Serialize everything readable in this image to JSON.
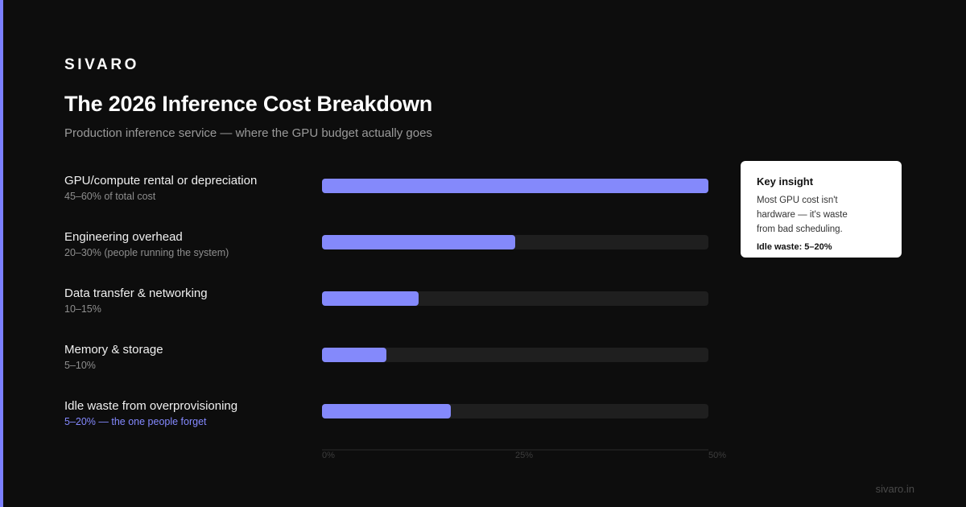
{
  "brand": "SIVARO",
  "title": "The 2026 Inference Cost Breakdown",
  "subtitle": "Production inference service — where the GPU budget actually goes",
  "colors": {
    "accent": "#7b7fff",
    "bar": "#8489fb",
    "track": "#1f1f1f",
    "background": "#0d0d0d",
    "highlight_note": "#8489ff"
  },
  "chart_data": {
    "type": "bar",
    "orientation": "horizontal",
    "xlim": [
      0,
      50
    ],
    "x_ticks": [
      "0%",
      "25%",
      "50%"
    ],
    "grid": false,
    "categories": [
      "GPU/compute rental or depreciation",
      "Engineering overhead",
      "Data transfer & networking",
      "Memory & storage",
      "Idle waste from overprovisioning"
    ],
    "notes": [
      "45–60% of total cost",
      "20–30% (people running the system)",
      "10–15%",
      "5–10%",
      "5–20% — the one people forget"
    ],
    "values": [
      50,
      25,
      12.5,
      8.3,
      16.7
    ]
  },
  "insight": {
    "heading": "Key insight",
    "body": "Most GPU cost isn't hardware — it's waste from bad scheduling.",
    "stat": "Idle waste: 5–20%"
  },
  "footer": {
    "url": "sivaro.in"
  }
}
